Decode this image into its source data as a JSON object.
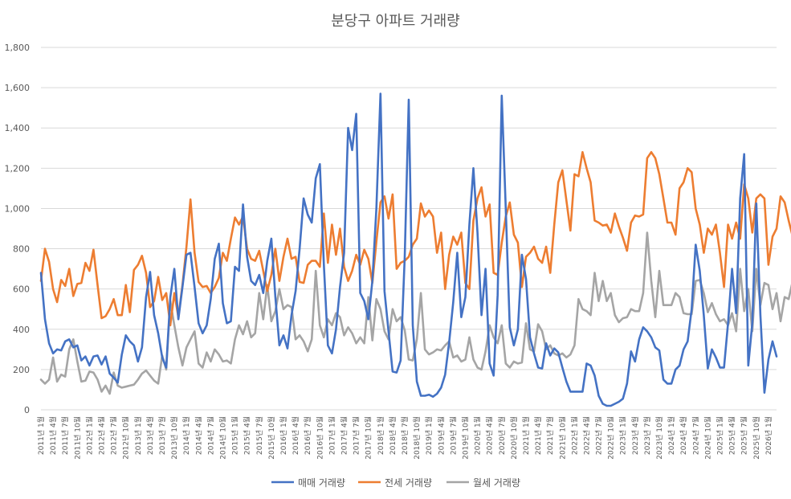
{
  "chart_data": {
    "type": "line",
    "title": "분당구 아파트 거래량",
    "ylim": [
      0,
      1800
    ],
    "yticks": [
      0,
      200,
      400,
      600,
      800,
      1000,
      1200,
      1400,
      1600,
      1800
    ],
    "ytick_labels": [
      "0",
      "200",
      "400",
      "600",
      "800",
      "1,000",
      "1,200",
      "1,400",
      "1,600",
      "1,800"
    ],
    "x_tick_labels": [
      "2011년 1월",
      "2011년 4월",
      "2011년 7월",
      "2011년 10월",
      "2012년 1월",
      "2012년 4월",
      "2012년 7월",
      "2012년 10월",
      "2013년 1월",
      "2013년 4월",
      "2013년 7월",
      "2013년 10월",
      "2014년 1월",
      "2014년 4월",
      "2014년 7월",
      "2014년 10월",
      "2015년 1월",
      "2015년 4월",
      "2015년 7월",
      "2015년 10월",
      "2016년 1월",
      "2016년 4월",
      "2016년 7월",
      "2016년 10월",
      "2017년 1월",
      "2017년 4월",
      "2017년 7월",
      "2017년 10월",
      "2018년 1월",
      "2018년 4월",
      "2018년 7월",
      "2018년 10월",
      "2019년 1월",
      "2019년 4월",
      "2019년 7월",
      "2019년 10월",
      "2020년 1월",
      "2020년 4월",
      "2020년 7월",
      "2020년 10월",
      "2021년 1월",
      "2021년 4월",
      "2021년 7월",
      "2021년 10월",
      "2022년 1월",
      "2022년 4월",
      "2022년 7월",
      "2022년 10월",
      "2023년 1월",
      "2023년 4월",
      "2023년 7월",
      "2023년 10월",
      "2024년 1월",
      "2024년 4월",
      "2024년 7월",
      "2024년 10월",
      "2025년 1월",
      "2025년 4월",
      "2025년 7월",
      "2025년 10월",
      "2026년 1월"
    ],
    "legend_position": "bottom",
    "series": [
      {
        "name": "매매 거래량",
        "color": "#4472C4",
        "values": [
          680,
          450,
          330,
          280,
          300,
          295,
          340,
          350,
          310,
          320,
          245,
          265,
          220,
          265,
          270,
          225,
          265,
          180,
          160,
          135,
          275,
          370,
          340,
          320,
          240,
          310,
          560,
          685,
          470,
          380,
          260,
          210,
          560,
          700,
          450,
          610,
          770,
          780,
          610,
          430,
          380,
          420,
          550,
          750,
          825,
          530,
          430,
          440,
          710,
          690,
          1020,
          760,
          640,
          620,
          670,
          580,
          740,
          850,
          560,
          320,
          370,
          305,
          470,
          590,
          800,
          1050,
          970,
          930,
          1150,
          1220,
          720,
          320,
          280,
          400,
          610,
          780,
          1400,
          1290,
          1470,
          580,
          540,
          450,
          640,
          1000,
          1570,
          590,
          390,
          190,
          185,
          245,
          760,
          1540,
          420,
          140,
          70,
          70,
          75,
          65,
          80,
          110,
          175,
          335,
          535,
          780,
          460,
          560,
          920,
          1200,
          880,
          470,
          700,
          230,
          170,
          570,
          1560,
          1000,
          410,
          320,
          400,
          770,
          650,
          360,
          280,
          210,
          205,
          330,
          270,
          305,
          285,
          210,
          140,
          90,
          90,
          90,
          90,
          230,
          220,
          170,
          70,
          30,
          20,
          20,
          30,
          40,
          55,
          130,
          290,
          240,
          350,
          410,
          390,
          360,
          310,
          295,
          150,
          130,
          130,
          200,
          220,
          300,
          340,
          500,
          820,
          690,
          470,
          205,
          300,
          260,
          210,
          210,
          430,
          700,
          480,
          1050,
          1270,
          220,
          430,
          1025,
          470,
          85,
          250,
          340,
          265
        ]
      },
      {
        "name": "전세 거래량",
        "color": "#ED7D31",
        "values": [
          640,
          800,
          735,
          600,
          535,
          645,
          615,
          700,
          565,
          625,
          630,
          730,
          690,
          795,
          620,
          455,
          465,
          500,
          550,
          470,
          470,
          620,
          485,
          695,
          720,
          765,
          680,
          510,
          540,
          660,
          545,
          580,
          420,
          580,
          460,
          620,
          810,
          1045,
          780,
          635,
          610,
          615,
          580,
          610,
          655,
          780,
          740,
          850,
          955,
          920,
          960,
          800,
          750,
          740,
          790,
          690,
          590,
          670,
          800,
          640,
          760,
          850,
          750,
          760,
          635,
          630,
          720,
          740,
          740,
          710,
          975,
          730,
          920,
          770,
          900,
          710,
          640,
          690,
          770,
          720,
          795,
          750,
          630,
          835,
          1030,
          1060,
          950,
          1070,
          700,
          730,
          740,
          760,
          820,
          850,
          1025,
          960,
          990,
          960,
          780,
          880,
          600,
          770,
          860,
          820,
          880,
          630,
          600,
          940,
          1050,
          1105,
          960,
          1020,
          680,
          670,
          830,
          960,
          1030,
          870,
          830,
          610,
          760,
          780,
          810,
          750,
          730,
          810,
          680,
          920,
          1130,
          1190,
          1040,
          890,
          1170,
          1160,
          1280,
          1200,
          1130,
          940,
          930,
          915,
          920,
          880,
          975,
          910,
          855,
          790,
          930,
          965,
          960,
          970,
          1250,
          1280,
          1250,
          1170,
          1050,
          930,
          930,
          870,
          1100,
          1130,
          1200,
          1180,
          1000,
          920,
          780,
          900,
          870,
          920,
          780,
          610,
          920,
          850,
          930,
          850,
          1120,
          1050,
          880,
          1050,
          1070,
          1050,
          720,
          860,
          900,
          1060,
          1030,
          940,
          860
        ]
      },
      {
        "name": "월세 거래량",
        "color": "#A5A5A5",
        "values": [
          150,
          130,
          150,
          260,
          140,
          175,
          165,
          300,
          350,
          240,
          140,
          145,
          190,
          185,
          150,
          90,
          120,
          80,
          185,
          120,
          110,
          115,
          120,
          125,
          150,
          180,
          195,
          170,
          145,
          130,
          270,
          200,
          540,
          420,
          310,
          220,
          310,
          350,
          390,
          230,
          210,
          285,
          240,
          300,
          275,
          240,
          245,
          230,
          350,
          420,
          375,
          440,
          360,
          380,
          580,
          450,
          620,
          440,
          490,
          600,
          500,
          520,
          510,
          350,
          370,
          340,
          290,
          350,
          690,
          420,
          360,
          450,
          420,
          480,
          460,
          370,
          410,
          380,
          330,
          360,
          330,
          560,
          345,
          550,
          500,
          390,
          350,
          500,
          440,
          460,
          395,
          250,
          245,
          350,
          580,
          300,
          275,
          285,
          300,
          295,
          320,
          340,
          260,
          270,
          240,
          250,
          360,
          250,
          210,
          200,
          290,
          420,
          360,
          330,
          420,
          230,
          210,
          240,
          230,
          235,
          430,
          300,
          290,
          425,
          390,
          300,
          320,
          280,
          270,
          280,
          260,
          275,
          320,
          550,
          500,
          490,
          470,
          680,
          540,
          640,
          540,
          580,
          470,
          435,
          455,
          460,
          500,
          490,
          490,
          580,
          880,
          640,
          460,
          690,
          520,
          520,
          520,
          580,
          560,
          480,
          475,
          475,
          640,
          645,
          580,
          485,
          530,
          475,
          440,
          450,
          420,
          480,
          390,
          700,
          490,
          600,
          390,
          700,
          520,
          630,
          620,
          500,
          580,
          440,
          560,
          550,
          640,
          630,
          600,
          500
        ]
      }
    ]
  }
}
